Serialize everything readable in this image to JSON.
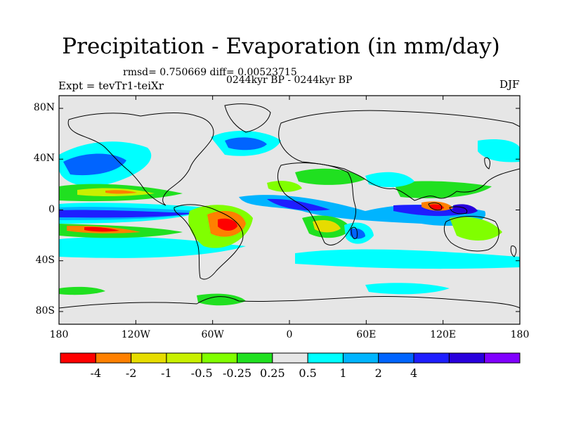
{
  "title": "Precipitation - Evaporation (in mm/day)",
  "stats": "rmsd= 0.750669 diff= 0.00523715",
  "period": "0244kyr BP - 0244kyr BP",
  "experiment": "Expt = tevTr1-teiXr",
  "season": "DJF",
  "map": {
    "lon_range": [
      -180,
      180
    ],
    "lat_range": [
      -90,
      90
    ],
    "background_color": "#e6e6e6",
    "y_ticks": [
      {
        "lat": 80,
        "label": "80N"
      },
      {
        "lat": 40,
        "label": "40N"
      },
      {
        "lat": 0,
        "label": "0"
      },
      {
        "lat": -40,
        "label": "40S"
      },
      {
        "lat": -80,
        "label": "80S"
      }
    ],
    "x_ticks": [
      {
        "lon": -180,
        "label": "180"
      },
      {
        "lon": -120,
        "label": "120W"
      },
      {
        "lon": -60,
        "label": "60W"
      },
      {
        "lon": 0,
        "label": "0"
      },
      {
        "lon": 60,
        "label": "60E"
      },
      {
        "lon": 120,
        "label": "120E"
      },
      {
        "lon": 180,
        "label": "180"
      }
    ]
  },
  "colorbar": {
    "colors": [
      "#ff0000",
      "#ff8000",
      "#e6dc00",
      "#c8f000",
      "#80ff00",
      "#20e020",
      "#e6e6e6",
      "#00ffff",
      "#00b4ff",
      "#0064ff",
      "#1e1eff",
      "#2800dc",
      "#8000ff"
    ],
    "labels": [
      "-4",
      "-2",
      "-1",
      "-0.5",
      "-0.25",
      "0.25",
      "0.5",
      "1",
      "2",
      "4"
    ]
  }
}
